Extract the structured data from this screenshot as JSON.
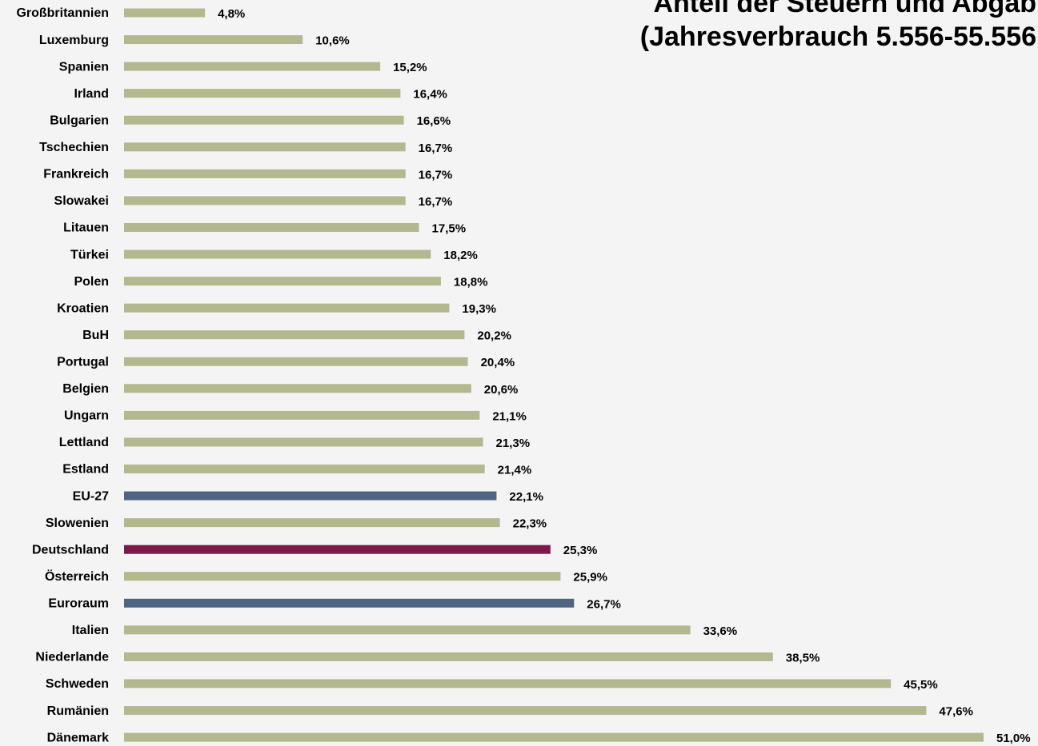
{
  "chart_data": {
    "type": "bar",
    "orientation": "horizontal",
    "title": "Anteil der Steuern und Abgab",
    "subtitle": "(Jahresverbrauch 5.556-55.556",
    "categories": [
      "Großbritannien",
      "Luxemburg",
      "Spanien",
      "Irland",
      "Bulgarien",
      "Tschechien",
      "Frankreich",
      "Slowakei",
      "Litauen",
      "Türkei",
      "Polen",
      "Kroatien",
      "BuH",
      "Portugal",
      "Belgien",
      "Ungarn",
      "Lettland",
      "Estland",
      "EU-27",
      "Slowenien",
      "Deutschland",
      "Österreich",
      "Euroraum",
      "Italien",
      "Niederlande",
      "Schweden",
      "Rumänien",
      "Dänemark"
    ],
    "values": [
      4.8,
      10.6,
      15.2,
      16.4,
      16.6,
      16.7,
      16.7,
      16.7,
      17.5,
      18.2,
      18.8,
      19.3,
      20.2,
      20.4,
      20.6,
      21.1,
      21.3,
      21.4,
      22.1,
      22.3,
      25.3,
      25.9,
      26.7,
      33.6,
      38.5,
      45.5,
      47.6,
      51.0
    ],
    "value_labels": [
      "4,8%",
      "10,6%",
      "15,2%",
      "16,4%",
      "16,6%",
      "16,7%",
      "16,7%",
      "16,7%",
      "17,5%",
      "18,2%",
      "18,8%",
      "19,3%",
      "20,2%",
      "20,4%",
      "20,6%",
      "21,1%",
      "21,3%",
      "21,4%",
      "22,1%",
      "22,3%",
      "25,3%",
      "25,9%",
      "26,7%",
      "33,6%",
      "38,5%",
      "45,5%",
      "47,6%",
      "51,0%"
    ],
    "colors": [
      "#b3b88e",
      "#b3b88e",
      "#b3b88e",
      "#b3b88e",
      "#b3b88e",
      "#b3b88e",
      "#b3b88e",
      "#b3b88e",
      "#b3b88e",
      "#b3b88e",
      "#b3b88e",
      "#b3b88e",
      "#b3b88e",
      "#b3b88e",
      "#b3b88e",
      "#b3b88e",
      "#b3b88e",
      "#b3b88e",
      "#4f6480",
      "#b3b88e",
      "#7b1a4b",
      "#b3b88e",
      "#4f6480",
      "#b3b88e",
      "#b3b88e",
      "#b3b88e",
      "#b3b88e",
      "#b3b88e"
    ]
  }
}
